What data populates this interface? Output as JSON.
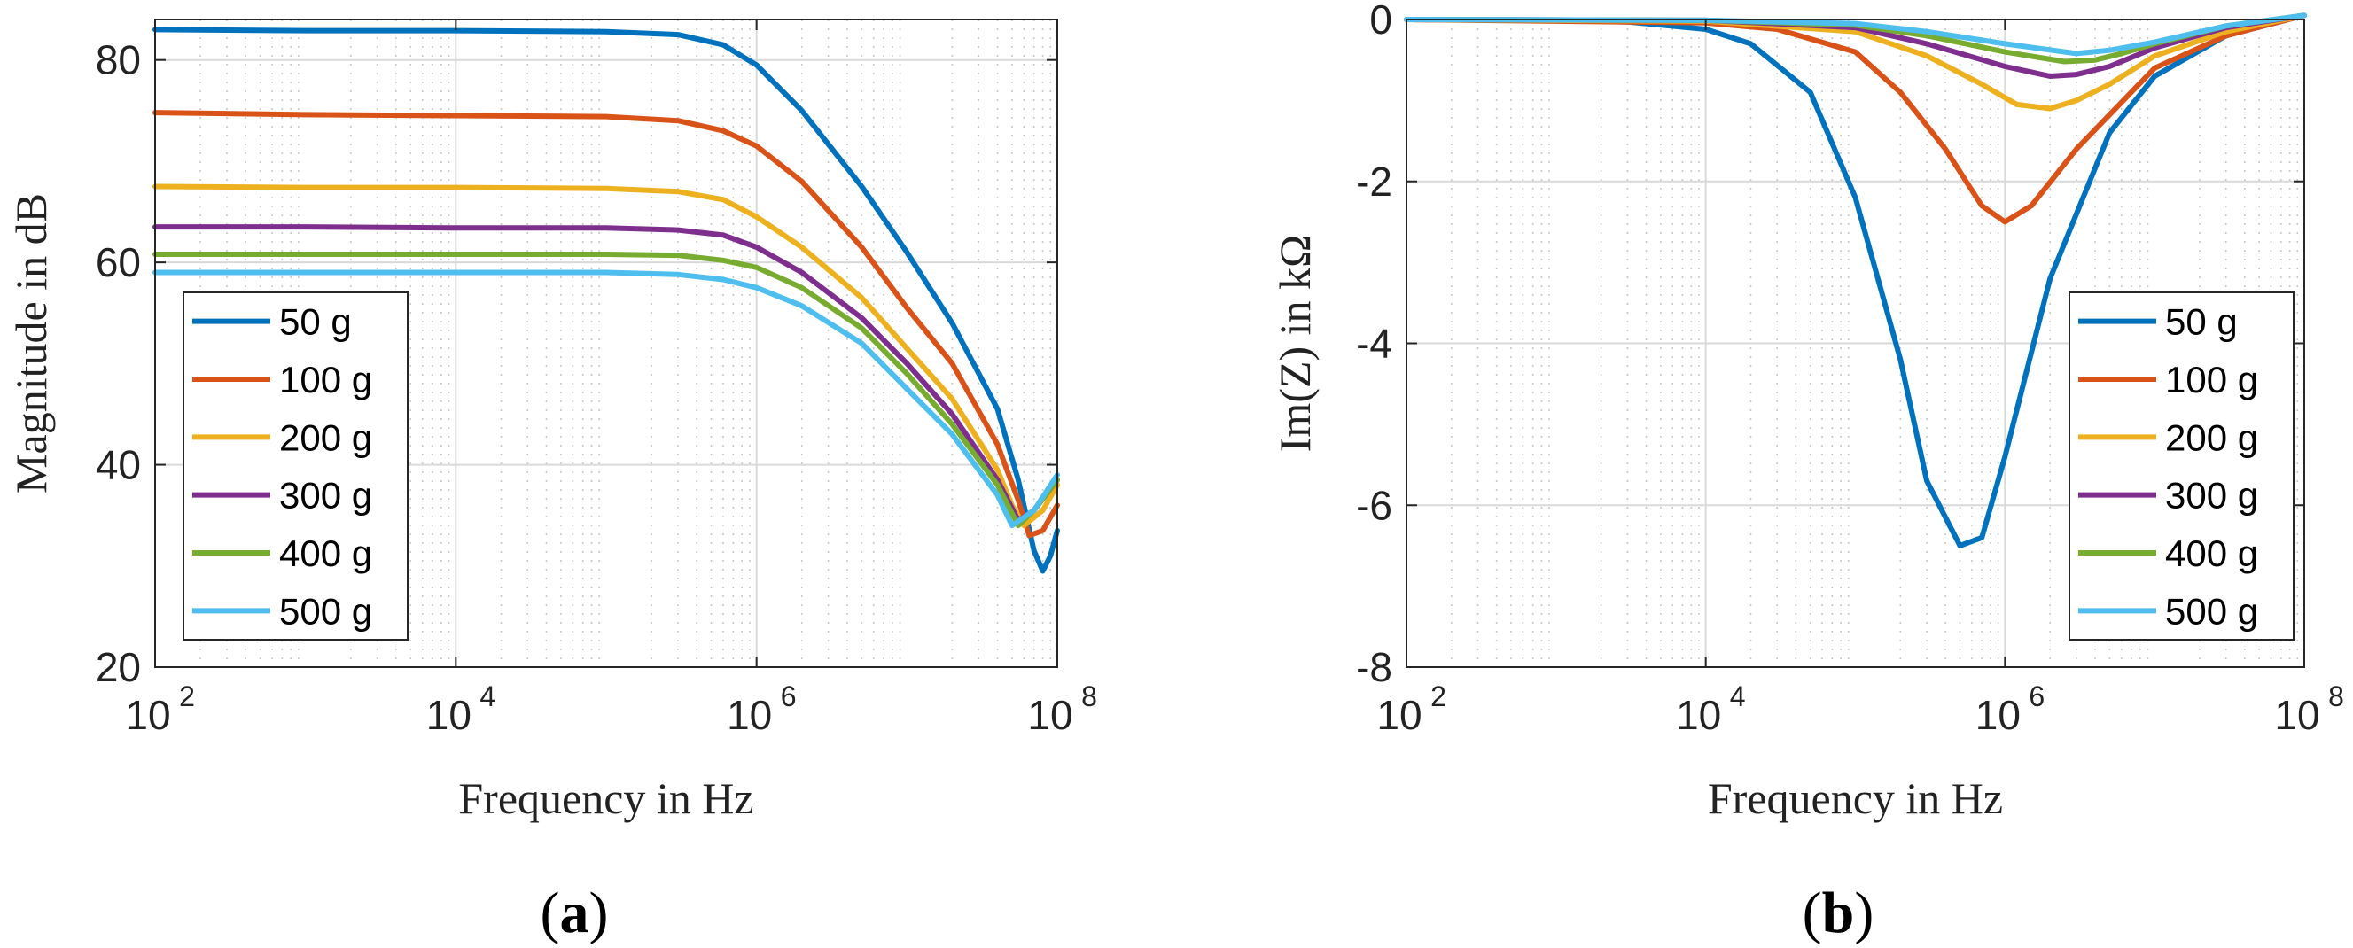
{
  "chart_data": [
    {
      "id": "a",
      "type": "line",
      "panel_label": "a",
      "xscale": "log",
      "xlim": [
        100,
        100000000
      ],
      "ylim": [
        20,
        84
      ],
      "xlabel": "Frequency in Hz",
      "ylabel": "Magnitude in dB",
      "xticks": [
        {
          "base": "10",
          "exp": "2",
          "value": 100
        },
        {
          "base": "10",
          "exp": "4",
          "value": 10000
        },
        {
          "base": "10",
          "exp": "6",
          "value": 1000000
        },
        {
          "base": "10",
          "exp": "8",
          "value": 100000000
        }
      ],
      "yticks": [
        {
          "label": "20",
          "value": 20
        },
        {
          "label": "40",
          "value": 40
        },
        {
          "label": "60",
          "value": 60
        },
        {
          "label": "80",
          "value": 80
        }
      ],
      "grid": true,
      "legend_position": "bottom-left",
      "series": [
        {
          "name": "50 g",
          "color": "#0072BD",
          "x": [
            100,
            1000,
            10000,
            100000,
            300000,
            600000,
            1000000,
            2000000,
            5000000,
            10000000,
            20000000,
            40000000,
            55000000,
            70000000,
            80000000,
            90000000,
            100000000
          ],
          "y": [
            83,
            82.9,
            82.9,
            82.8,
            82.5,
            81.5,
            79.5,
            75,
            67.5,
            61,
            54,
            45.5,
            38.5,
            31.5,
            29.5,
            31,
            33.5
          ]
        },
        {
          "name": "100 g",
          "color": "#D95319",
          "x": [
            100,
            1000,
            10000,
            100000,
            300000,
            600000,
            1000000,
            2000000,
            5000000,
            10000000,
            20000000,
            40000000,
            55000000,
            65000000,
            80000000,
            100000000
          ],
          "y": [
            74.8,
            74.6,
            74.5,
            74.4,
            74,
            73,
            71.5,
            68,
            61.5,
            55.5,
            50,
            42,
            36.5,
            33,
            33.5,
            36
          ]
        },
        {
          "name": "200 g",
          "color": "#EDB120",
          "x": [
            100,
            1000,
            10000,
            100000,
            300000,
            600000,
            1000000,
            2000000,
            5000000,
            10000000,
            20000000,
            40000000,
            50000000,
            60000000,
            80000000,
            100000000
          ],
          "y": [
            67.5,
            67.4,
            67.4,
            67.3,
            67,
            66.2,
            64.5,
            61.5,
            56.5,
            51.5,
            46.5,
            39.5,
            36,
            34,
            35.5,
            38
          ]
        },
        {
          "name": "300 g",
          "color": "#7E2F8E",
          "x": [
            100,
            1000,
            10000,
            100000,
            300000,
            600000,
            1000000,
            2000000,
            5000000,
            10000000,
            20000000,
            40000000,
            55000000,
            70000000,
            100000000
          ],
          "y": [
            63.5,
            63.5,
            63.4,
            63.4,
            63.2,
            62.7,
            61.5,
            59,
            54.5,
            50,
            45,
            38.5,
            34.5,
            35.5,
            38.5
          ]
        },
        {
          "name": "400 g",
          "color": "#77AC30",
          "x": [
            100,
            1000,
            10000,
            100000,
            300000,
            600000,
            1000000,
            2000000,
            5000000,
            10000000,
            20000000,
            40000000,
            55000000,
            70000000,
            100000000
          ],
          "y": [
            60.8,
            60.8,
            60.8,
            60.8,
            60.7,
            60.2,
            59.5,
            57.5,
            53.5,
            49,
            44,
            38,
            34,
            35.5,
            38.5
          ]
        },
        {
          "name": "500 g",
          "color": "#4DBEEE",
          "x": [
            100,
            1000,
            10000,
            100000,
            300000,
            600000,
            1000000,
            2000000,
            5000000,
            10000000,
            20000000,
            40000000,
            50000000,
            70000000,
            100000000
          ],
          "y": [
            59,
            59,
            59,
            59,
            58.8,
            58.3,
            57.5,
            55.7,
            52,
            47.5,
            43,
            37,
            34,
            35.5,
            39
          ]
        }
      ]
    },
    {
      "id": "b",
      "type": "line",
      "panel_label": "b",
      "xscale": "log",
      "xlim": [
        100,
        100000000
      ],
      "ylim": [
        -8,
        0
      ],
      "xlabel": "Frequency in Hz",
      "ylabel": "Im(Z) in kΩ",
      "xticks": [
        {
          "base": "10",
          "exp": "2",
          "value": 100
        },
        {
          "base": "10",
          "exp": "4",
          "value": 10000
        },
        {
          "base": "10",
          "exp": "6",
          "value": 1000000
        },
        {
          "base": "10",
          "exp": "8",
          "value": 100000000
        }
      ],
      "yticks": [
        {
          "label": "-8",
          "value": -8
        },
        {
          "label": "-6",
          "value": -6
        },
        {
          "label": "-4",
          "value": -4
        },
        {
          "label": "-2",
          "value": -2
        },
        {
          "label": "0",
          "value": 0
        }
      ],
      "grid": true,
      "legend_position": "bottom-right",
      "series": [
        {
          "name": "50 g",
          "color": "#0072BD",
          "x": [
            100,
            1000,
            3000,
            10000,
            20000,
            50000,
            100000,
            200000,
            300000,
            500000,
            700000,
            1000000,
            2000000,
            5000000,
            10000000,
            30000000,
            100000000
          ],
          "y": [
            0,
            -0.01,
            -0.03,
            -0.12,
            -0.3,
            -0.9,
            -2.2,
            -4.2,
            -5.7,
            -6.5,
            -6.4,
            -5.4,
            -3.2,
            -1.4,
            -0.7,
            -0.2,
            0.05
          ]
        },
        {
          "name": "100 g",
          "color": "#D95319",
          "x": [
            100,
            10000,
            30000,
            100000,
            200000,
            400000,
            700000,
            1000000,
            1500000,
            3000000,
            10000000,
            30000000,
            100000000
          ],
          "y": [
            0,
            -0.04,
            -0.12,
            -0.4,
            -0.9,
            -1.6,
            -2.3,
            -2.5,
            -2.3,
            -1.6,
            -0.6,
            -0.2,
            0.05
          ]
        },
        {
          "name": "200 g",
          "color": "#EDB120",
          "x": [
            100,
            10000,
            100000,
            300000,
            700000,
            1200000,
            2000000,
            3000000,
            5000000,
            10000000,
            30000000,
            100000000
          ],
          "y": [
            0,
            -0.02,
            -0.15,
            -0.45,
            -0.8,
            -1.05,
            -1.1,
            -1.0,
            -0.8,
            -0.45,
            -0.15,
            0.05
          ]
        },
        {
          "name": "300 g",
          "color": "#7E2F8E",
          "x": [
            100,
            10000,
            100000,
            300000,
            1000000,
            2000000,
            3000000,
            5000000,
            10000000,
            30000000,
            100000000
          ],
          "y": [
            0,
            -0.01,
            -0.1,
            -0.3,
            -0.58,
            -0.7,
            -0.68,
            -0.58,
            -0.35,
            -0.1,
            0.05
          ]
        },
        {
          "name": "400 g",
          "color": "#77AC30",
          "x": [
            100,
            10000,
            100000,
            300000,
            1000000,
            2500000,
            4000000,
            6000000,
            10000000,
            30000000,
            100000000
          ],
          "y": [
            0,
            -0.01,
            -0.07,
            -0.2,
            -0.4,
            -0.52,
            -0.5,
            -0.42,
            -0.3,
            -0.08,
            0.05
          ]
        },
        {
          "name": "500 g",
          "color": "#4DBEEE",
          "x": [
            100,
            10000,
            100000,
            300000,
            1000000,
            3000000,
            5000000,
            10000000,
            30000000,
            100000000
          ],
          "y": [
            0,
            -0.01,
            -0.05,
            -0.15,
            -0.3,
            -0.42,
            -0.38,
            -0.28,
            -0.08,
            0.05
          ]
        }
      ]
    }
  ]
}
